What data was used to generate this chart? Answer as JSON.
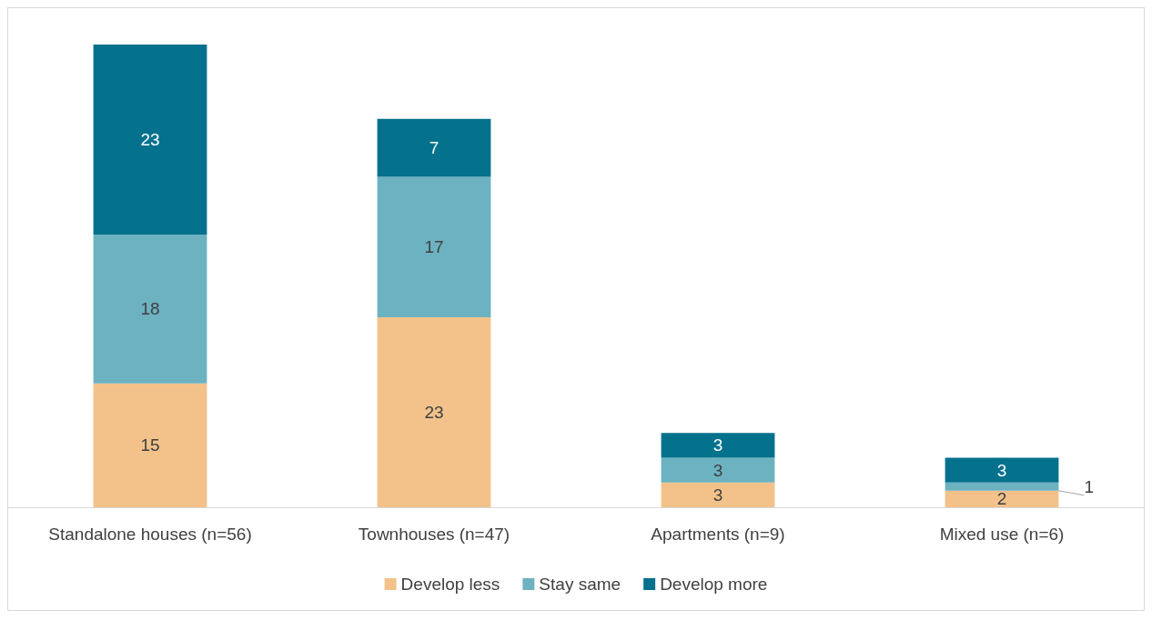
{
  "chart_data": {
    "type": "bar",
    "stacked": true,
    "data_labels": true,
    "legend": "bottom",
    "categories": [
      "Standalone houses (n=56)",
      "Townhouses (n=47)",
      "Apartments (n=9)",
      "Mixed use (n=6)"
    ],
    "series": [
      {
        "name": "Develop less",
        "color": "#f2c28a",
        "values": [
          15,
          23,
          3,
          2
        ]
      },
      {
        "name": "Stay same",
        "color": "#6db2c1",
        "values": [
          18,
          17,
          3,
          1
        ]
      },
      {
        "name": "Develop more",
        "color": "#04718d",
        "values": [
          23,
          7,
          3,
          3
        ]
      }
    ]
  }
}
